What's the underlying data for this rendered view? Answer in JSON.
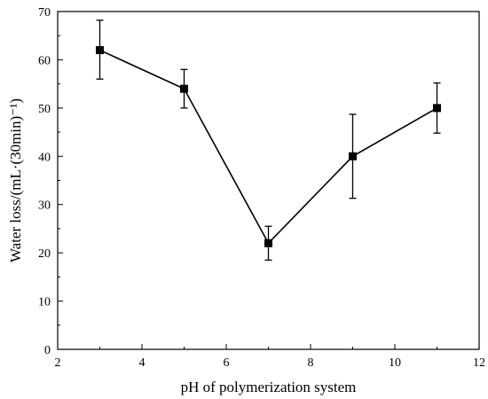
{
  "chart_data": {
    "type": "line",
    "title": "",
    "xlabel": "pH of polymerization system",
    "ylabel": "Water loss/(mL·(30min)⁻¹)",
    "xlim": [
      2,
      12
    ],
    "ylim": [
      0,
      70
    ],
    "x_ticks": [
      2,
      4,
      6,
      8,
      10,
      12
    ],
    "y_ticks": [
      0,
      10,
      20,
      30,
      40,
      50,
      60,
      70
    ],
    "grid": false,
    "legend": "none",
    "series": [
      {
        "x": [
          3,
          5,
          7,
          9,
          11
        ],
        "y": [
          62,
          54,
          22,
          40,
          50
        ],
        "error_lower": [
          56,
          50,
          18.5,
          31.3,
          44.8
        ],
        "error_upper": [
          68.2,
          58,
          25.5,
          48.7,
          55.2
        ],
        "marker": "square",
        "color": "#000000"
      }
    ]
  }
}
